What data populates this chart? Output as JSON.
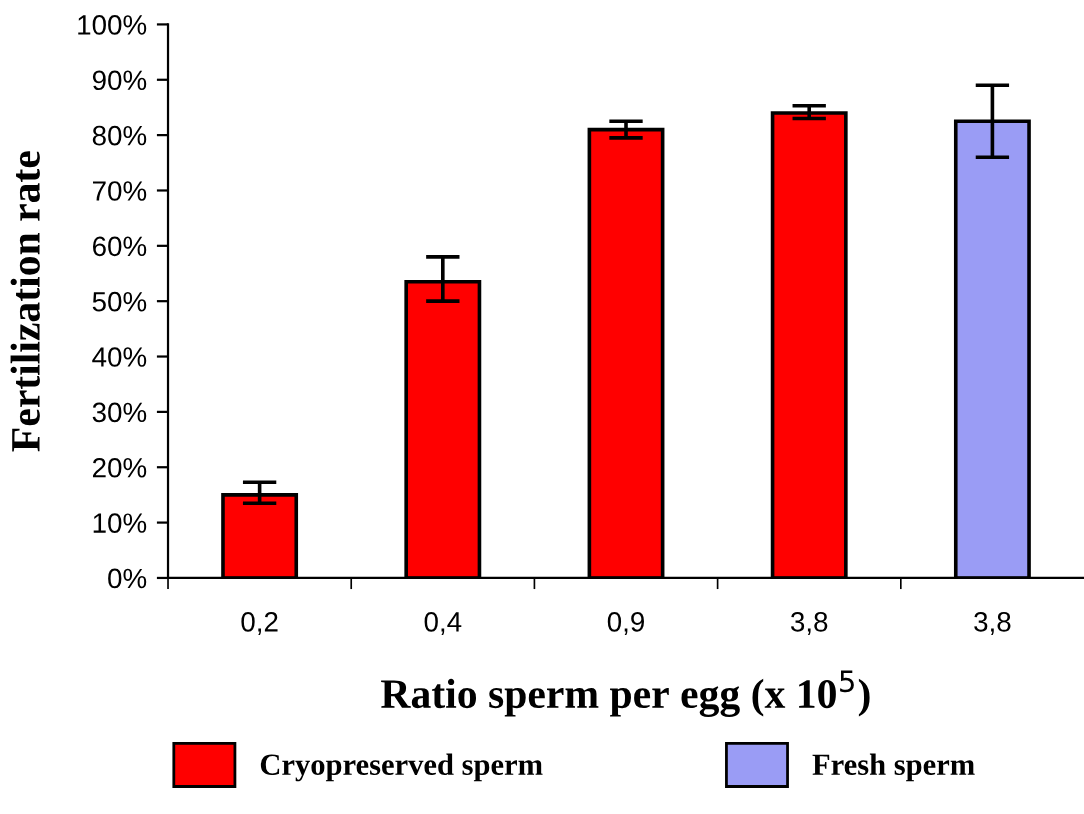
{
  "chart_data": {
    "type": "bar",
    "xlabel": "Ratio sperm per egg (x 10$^{5}$)",
    "ylabel": "Fertilization rate",
    "categories": [
      "0,2",
      "0,4",
      "0,9",
      "3,8",
      "3,8"
    ],
    "series": [
      {
        "name": "Cryopreserved sperm",
        "color": "#ff0000",
        "values": [
          15,
          53.5,
          81,
          84,
          null
        ],
        "errors": [
          [
            13.5,
            17.3
          ],
          [
            50,
            58
          ],
          [
            79.5,
            82.5
          ],
          [
            83,
            85.3
          ],
          null
        ]
      },
      {
        "name": "Fresh sperm",
        "color": "#9a9cf5",
        "values": [
          null,
          null,
          null,
          null,
          82.5
        ],
        "errors": [
          null,
          null,
          null,
          null,
          [
            76,
            89
          ]
        ]
      }
    ],
    "ylim": [
      0,
      100
    ],
    "yticks": [
      {
        "value": 0,
        "label": "0%"
      },
      {
        "value": 10,
        "label": "10%"
      },
      {
        "value": 20,
        "label": "20%"
      },
      {
        "value": 30,
        "label": "30%"
      },
      {
        "value": 40,
        "label": "40%"
      },
      {
        "value": 50,
        "label": "50%"
      },
      {
        "value": 60,
        "label": "60%"
      },
      {
        "value": 70,
        "label": "70%"
      },
      {
        "value": 80,
        "label": "80%"
      },
      {
        "value": 90,
        "label": "90%"
      },
      {
        "value": 100,
        "label": "100%"
      }
    ],
    "grid": false,
    "legend": "bottom"
  }
}
